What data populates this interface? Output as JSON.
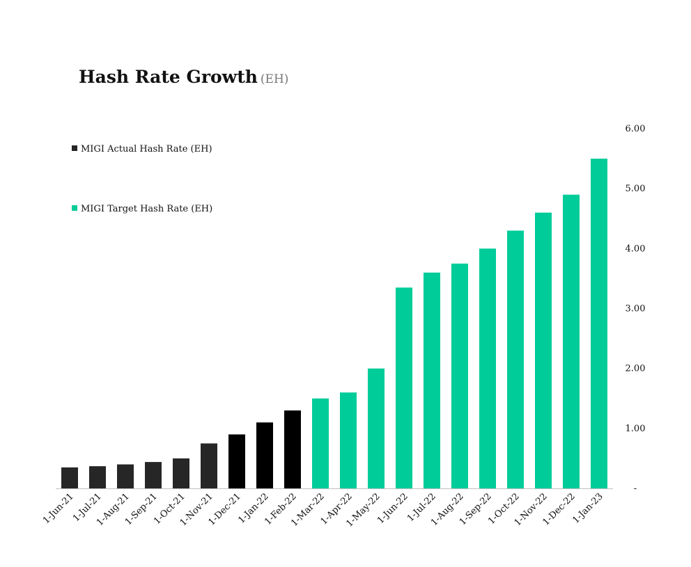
{
  "chart_data": {
    "type": "bar",
    "title": "Hash Rate Growth",
    "title_unit": "(EH)",
    "categories": [
      "1-Jun-21",
      "1-Jul-21",
      "1-Aug-21",
      "1-Sep-21",
      "1-Oct-21",
      "1-Nov-21",
      "1-Dec-21",
      "1-Jan-22",
      "1-Feb-22",
      "1-Mar-22",
      "1-Apr-22",
      "1-May-22",
      "1-Jun-22",
      "1-Jul-22",
      "1-Aug-22",
      "1-Sep-22",
      "1-Oct-22",
      "1-Nov-22",
      "1-Dec-22",
      "1-Jan-23"
    ],
    "series": [
      {
        "name": "MIGI Actual Hash Rate (EH)",
        "color": "#262626",
        "values": [
          0.35,
          0.37,
          0.4,
          0.44,
          0.5,
          0.75,
          0.9,
          1.1,
          1.3,
          null,
          null,
          null,
          null,
          null,
          null,
          null,
          null,
          null,
          null,
          null
        ]
      },
      {
        "name": "MIGI Target Hash Rate (EH)",
        "color": "#00CC99",
        "values": [
          null,
          null,
          null,
          null,
          null,
          null,
          null,
          null,
          null,
          1.5,
          1.6,
          2.0,
          3.35,
          3.6,
          3.75,
          4.0,
          4.3,
          4.6,
          4.9,
          5.5
        ]
      }
    ],
    "bar_colors": [
      "#262626",
      "#262626",
      "#262626",
      "#262626",
      "#262626",
      "#262626",
      "#000000",
      "#000000",
      "#000000",
      "#00CC99",
      "#00CC99",
      "#00CC99",
      "#00CC99",
      "#00CC99",
      "#00CC99",
      "#00CC99",
      "#00CC99",
      "#00CC99",
      "#00CC99",
      "#00CC99"
    ],
    "y_axis": {
      "position": "right",
      "ylim": [
        0,
        6
      ],
      "ticks": [
        0,
        1,
        2,
        3,
        4,
        5,
        6
      ],
      "tick_labels": [
        "-",
        "1.00",
        "2.00",
        "3.00",
        "4.00",
        "5.00",
        "6.00"
      ]
    },
    "xlabel": "",
    "ylabel": "",
    "grid": false,
    "legend_position": "top-left"
  }
}
